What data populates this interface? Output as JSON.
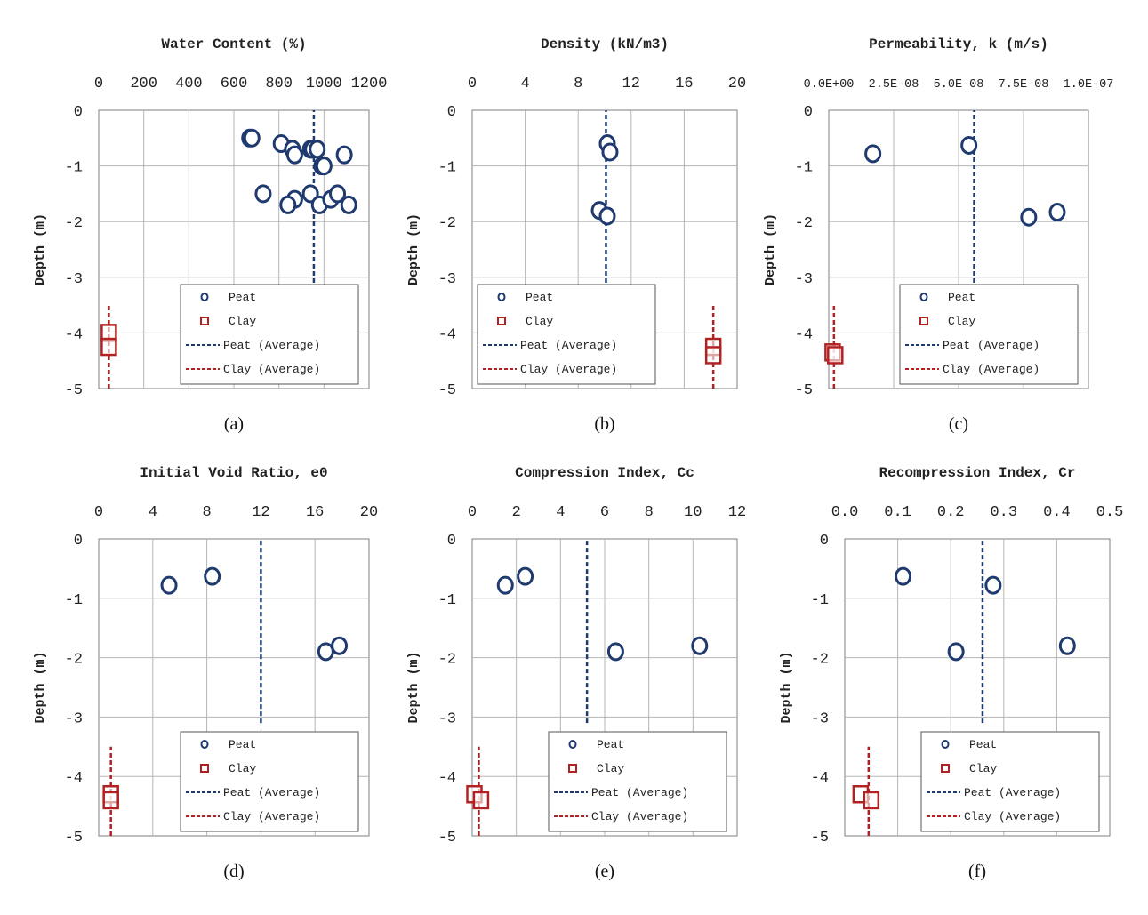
{
  "colors": {
    "peat": "#1f3a6e",
    "clay": "#b22222",
    "grid": "#b5b5b5",
    "axis": "#7f7f7f"
  },
  "legend": [
    "Peat",
    "Clay",
    "Peat (Average)",
    "Clay (Average)"
  ],
  "chart_data": [
    {
      "type": "scatter",
      "title": "Water Content (%)",
      "caption": "(a)",
      "ylabel": "Depth (m)",
      "xlim": [
        0,
        1200
      ],
      "xticks": [
        "0",
        "200",
        "400",
        "600",
        "800",
        "1000",
        "1200"
      ],
      "ylim": [
        -5,
        0
      ],
      "yticks": [
        "0",
        "-1",
        "-2",
        "-3",
        "-4",
        "-5"
      ],
      "grid": true,
      "legend_position": "bottom-right",
      "series": [
        {
          "name": "Peat",
          "marker": "circle",
          "x": [
            670,
            680,
            810,
            860,
            870,
            940,
            950,
            970,
            990,
            1000,
            1090,
            730,
            940,
            870,
            840,
            980,
            1030,
            1060,
            1110
          ],
          "y": [
            -0.5,
            -0.5,
            -0.6,
            -0.7,
            -0.8,
            -0.7,
            -0.7,
            -0.7,
            -1.0,
            -1.0,
            -0.8,
            -1.5,
            -1.5,
            -1.6,
            -1.7,
            -1.7,
            -1.6,
            -1.5,
            -1.7
          ]
        },
        {
          "name": "Clay",
          "marker": "square",
          "x": [
            45,
            45
          ],
          "y": [
            -4.0,
            -4.25
          ]
        },
        {
          "name": "Peat (Average)",
          "style": "dashed",
          "x": [
            955,
            955
          ],
          "y": [
            -3.1,
            0
          ]
        },
        {
          "name": "Clay (Average)",
          "style": "dashed",
          "x": [
            45,
            45
          ],
          "y": [
            -5,
            -3.5
          ]
        }
      ]
    },
    {
      "type": "scatter",
      "title": "Density (kN/m3)",
      "caption": "(b)",
      "ylabel": "Depth (m)",
      "xlim": [
        0,
        20
      ],
      "xticks": [
        "0",
        "4",
        "8",
        "12",
        "16",
        "20"
      ],
      "ylim": [
        -5,
        0
      ],
      "yticks": [
        "0",
        "-1",
        "-2",
        "-3",
        "-4",
        "-5"
      ],
      "grid": true,
      "legend_position": "bottom-left",
      "series": [
        {
          "name": "Peat",
          "marker": "circle",
          "x": [
            10.2,
            10.4,
            9.6,
            10.2
          ],
          "y": [
            -0.6,
            -0.75,
            -1.8,
            -1.9
          ]
        },
        {
          "name": "Clay",
          "marker": "square",
          "x": [
            18.2,
            18.2
          ],
          "y": [
            -4.25,
            -4.4
          ]
        },
        {
          "name": "Peat (Average)",
          "style": "dashed",
          "x": [
            10.1,
            10.1
          ],
          "y": [
            -3.1,
            0
          ]
        },
        {
          "name": "Clay (Average)",
          "style": "dashed",
          "x": [
            18.2,
            18.2
          ],
          "y": [
            -5,
            -3.5
          ]
        }
      ]
    },
    {
      "type": "scatter",
      "title": "Permeability, k (m/s)",
      "caption": "(c)",
      "ylabel": "Depth (m)",
      "xlim": [
        0,
        1e-07
      ],
      "xticks": [
        "0.0E+00",
        "2.5E-08",
        "5.0E-08",
        "7.5E-08",
        "1.0E-07"
      ],
      "ylim": [
        -5,
        0
      ],
      "yticks": [
        "0",
        "-1",
        "-2",
        "-3",
        "-4",
        "-5"
      ],
      "grid": true,
      "legend_position": "bottom-right",
      "series": [
        {
          "name": "Peat",
          "marker": "circle",
          "x": [
            1.7e-08,
            5.4e-08,
            7.7e-08,
            8.8e-08
          ],
          "y": [
            -0.78,
            -0.63,
            -1.92,
            -1.83
          ]
        },
        {
          "name": "Clay",
          "marker": "square",
          "x": [
            1.5e-09,
            2.5e-09
          ],
          "y": [
            -4.35,
            -4.4
          ]
        },
        {
          "name": "Peat (Average)",
          "style": "dashed",
          "x": [
            5.6e-08,
            5.6e-08
          ],
          "y": [
            -3.1,
            0
          ]
        },
        {
          "name": "Clay (Average)",
          "style": "dashed",
          "x": [
            2e-09,
            2e-09
          ],
          "y": [
            -5,
            -3.5
          ]
        }
      ]
    },
    {
      "type": "scatter",
      "title": "Initial Void Ratio, e0",
      "caption": "(d)",
      "ylabel": "Depth (m)",
      "xlim": [
        0,
        20
      ],
      "xticks": [
        "0",
        "4",
        "8",
        "12",
        "16",
        "20"
      ],
      "ylim": [
        -5,
        0
      ],
      "yticks": [
        "0",
        "-1",
        "-2",
        "-3",
        "-4",
        "-5"
      ],
      "grid": true,
      "legend_position": "bottom-right",
      "series": [
        {
          "name": "Peat",
          "marker": "circle",
          "x": [
            5.2,
            8.4,
            16.8,
            17.8
          ],
          "y": [
            -0.78,
            -0.63,
            -1.9,
            -1.8
          ]
        },
        {
          "name": "Clay",
          "marker": "square",
          "x": [
            0.9,
            0.9
          ],
          "y": [
            -4.3,
            -4.4
          ]
        },
        {
          "name": "Peat (Average)",
          "style": "dashed",
          "x": [
            12.0,
            12.0
          ],
          "y": [
            -3.1,
            0
          ]
        },
        {
          "name": "Clay (Average)",
          "style": "dashed",
          "x": [
            0.9,
            0.9
          ],
          "y": [
            -5,
            -3.5
          ]
        }
      ]
    },
    {
      "type": "scatter",
      "title": "Compression Index, Cc",
      "caption": "(e)",
      "ylabel": "Depth (m)",
      "xlim": [
        0,
        12
      ],
      "xticks": [
        "0",
        "2",
        "4",
        "6",
        "8",
        "10",
        "12"
      ],
      "ylim": [
        -5,
        0
      ],
      "yticks": [
        "0",
        "-1",
        "-2",
        "-3",
        "-4",
        "-5"
      ],
      "grid": true,
      "legend_position": "bottom-right",
      "series": [
        {
          "name": "Peat",
          "marker": "circle",
          "x": [
            1.5,
            2.4,
            6.5,
            10.3
          ],
          "y": [
            -0.78,
            -0.63,
            -1.9,
            -1.8
          ]
        },
        {
          "name": "Clay",
          "marker": "square",
          "x": [
            0.1,
            0.4
          ],
          "y": [
            -4.3,
            -4.4
          ]
        },
        {
          "name": "Peat (Average)",
          "style": "dashed",
          "x": [
            5.2,
            5.2
          ],
          "y": [
            -3.1,
            0
          ]
        },
        {
          "name": "Clay (Average)",
          "style": "dashed",
          "x": [
            0.3,
            0.3
          ],
          "y": [
            -5,
            -3.5
          ]
        }
      ]
    },
    {
      "type": "scatter",
      "title": "Recompression Index, Cr",
      "caption": "(f)",
      "ylabel": "Depth (m)",
      "xlim": [
        0,
        0.5
      ],
      "xticks": [
        "0.0",
        "0.1",
        "0.2",
        "0.3",
        "0.4",
        "0.5"
      ],
      "ylim": [
        -5,
        0
      ],
      "yticks": [
        "0",
        "-1",
        "-2",
        "-3",
        "-4",
        "-5"
      ],
      "grid": true,
      "legend_position": "bottom-right",
      "series": [
        {
          "name": "Peat",
          "marker": "circle",
          "x": [
            0.11,
            0.28,
            0.21,
            0.42
          ],
          "y": [
            -0.63,
            -0.78,
            -1.9,
            -1.8
          ]
        },
        {
          "name": "Clay",
          "marker": "square",
          "x": [
            0.03,
            0.05
          ],
          "y": [
            -4.3,
            -4.4
          ]
        },
        {
          "name": "Peat (Average)",
          "style": "dashed",
          "x": [
            0.26,
            0.26
          ],
          "y": [
            -3.1,
            0
          ]
        },
        {
          "name": "Clay (Average)",
          "style": "dashed",
          "x": [
            0.045,
            0.045
          ],
          "y": [
            -5,
            -3.5
          ]
        }
      ]
    }
  ]
}
